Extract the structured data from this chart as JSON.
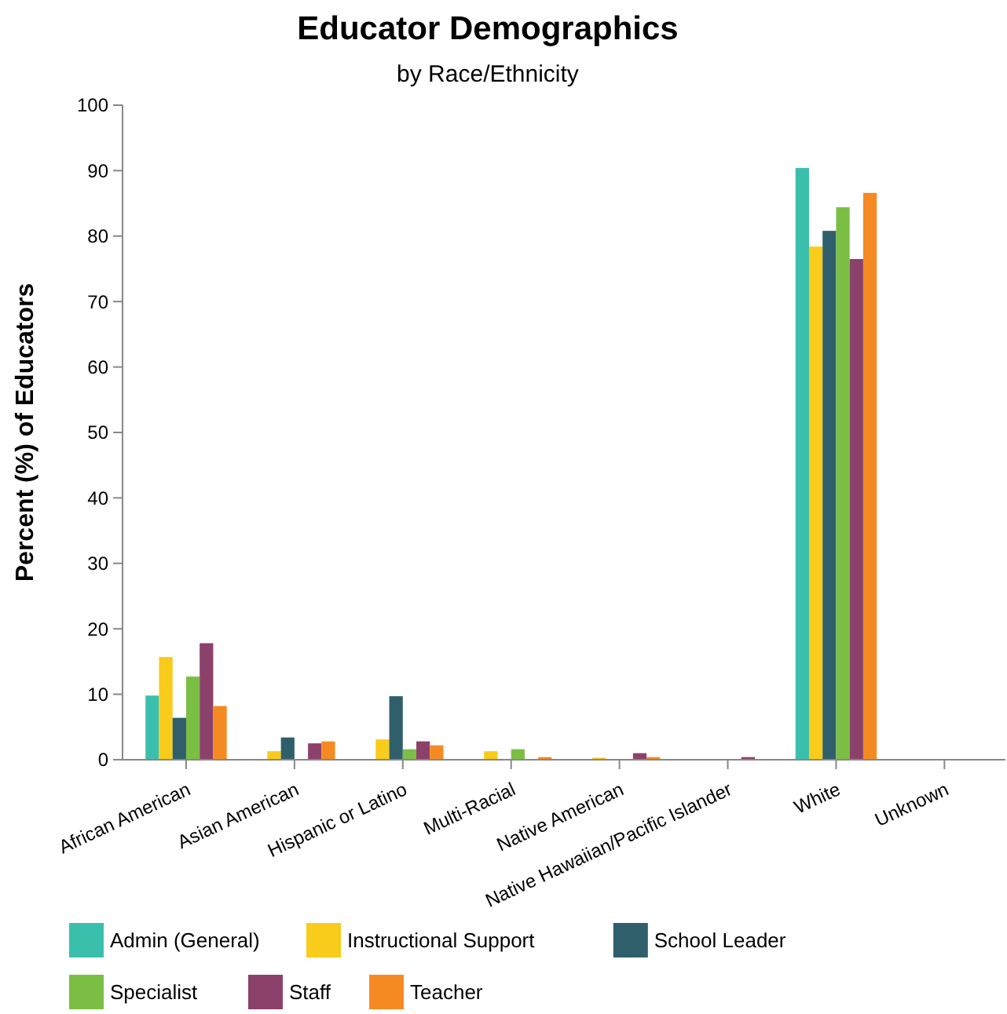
{
  "chart_data": {
    "type": "bar",
    "title": "Educator Demographics",
    "subtitle": "by Race/Ethnicity",
    "ylabel": "Percent (%) of Educators",
    "categories": [
      "African American",
      "Asian American",
      "Hispanic or Latino",
      "Multi-Racial",
      "Native American",
      "Native Hawaiian/Pacific Islander",
      "White",
      "Unknown"
    ],
    "series": [
      {
        "name": "Admin (General)",
        "color": "#3bbfad",
        "values": [
          9.8,
          0,
          0,
          0,
          0,
          0,
          90.4,
          0
        ]
      },
      {
        "name": "Instructional Support",
        "color": "#f9cb1a",
        "values": [
          15.7,
          1.3,
          3.1,
          1.3,
          0.3,
          0,
          78.4,
          0
        ]
      },
      {
        "name": "School Leader",
        "color": "#2f5f6b",
        "values": [
          6.4,
          3.4,
          9.7,
          0,
          0,
          0,
          80.8,
          0
        ]
      },
      {
        "name": "Specialist",
        "color": "#7abf43",
        "values": [
          12.7,
          0,
          1.6,
          1.6,
          0,
          0,
          84.4,
          0
        ]
      },
      {
        "name": "Staff",
        "color": "#8c416b",
        "values": [
          17.8,
          2.5,
          2.8,
          0,
          1.0,
          0.4,
          76.5,
          0
        ]
      },
      {
        "name": "Teacher",
        "color": "#f58a22",
        "values": [
          8.2,
          2.8,
          2.2,
          0.4,
          0.4,
          0,
          86.6,
          0
        ]
      }
    ],
    "ylim": [
      0,
      100
    ],
    "yticks": [
      0,
      10,
      20,
      30,
      40,
      50,
      60,
      70,
      80,
      90,
      100
    ],
    "grid": false,
    "legend": "bottom"
  }
}
